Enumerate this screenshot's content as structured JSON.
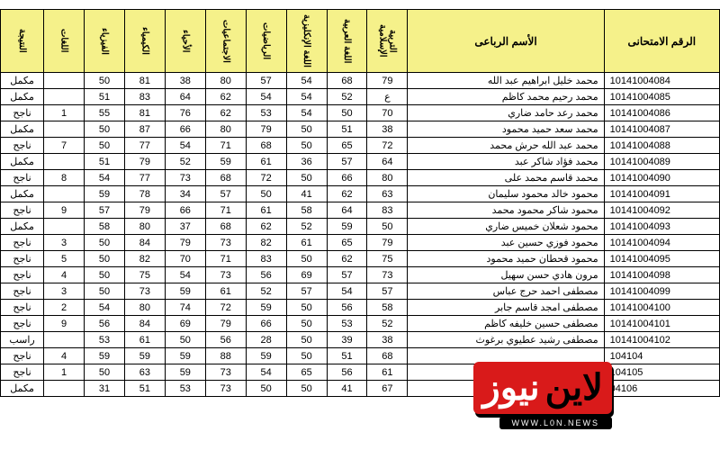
{
  "headers": {
    "examno": "الرقم الامتحانى",
    "name": "الأسم الرباعى",
    "subjects": [
      "التربية الإسلامية",
      "اللغة العربية",
      "اللغة الإنكليزية",
      "الرياضيات",
      "الاجتماعيات",
      "الأحياء",
      "الكيمياء",
      "الفيزياء",
      "اللغات",
      "النتيجة"
    ]
  },
  "rows": [
    {
      "id": "10141004084",
      "name": "محمد خليل ابراهيم عبد الله",
      "v": [
        "79",
        "68",
        "54",
        "57",
        "80",
        "38",
        "81",
        "50",
        "",
        "مكمل"
      ]
    },
    {
      "id": "10141004085",
      "name": "محمد رحيم محمد كاظم",
      "v": [
        "ع",
        "52",
        "54",
        "54",
        "62",
        "64",
        "83",
        "51",
        "",
        "مكمل"
      ]
    },
    {
      "id": "10141004086",
      "name": "محمد رعد حامد ضاري",
      "v": [
        "70",
        "50",
        "54",
        "53",
        "62",
        "76",
        "81",
        "55",
        "1",
        "ناجح"
      ]
    },
    {
      "id": "10141004087",
      "name": "محمد سعد حميد محمود",
      "v": [
        "38",
        "51",
        "50",
        "79",
        "80",
        "66",
        "87",
        "50",
        "",
        "مكمل"
      ]
    },
    {
      "id": "10141004088",
      "name": "محمد عبد الله حرش محمد",
      "v": [
        "72",
        "65",
        "50",
        "68",
        "71",
        "54",
        "77",
        "50",
        "7",
        "ناجح"
      ]
    },
    {
      "id": "10141004089",
      "name": "محمد فؤاد شاكر عبد",
      "v": [
        "64",
        "57",
        "36",
        "61",
        "59",
        "52",
        "79",
        "51",
        "",
        "مكمل"
      ]
    },
    {
      "id": "10141004090",
      "name": "محمد قاسم محمد على",
      "v": [
        "80",
        "66",
        "50",
        "72",
        "68",
        "73",
        "77",
        "54",
        "8",
        "ناجح"
      ]
    },
    {
      "id": "10141004091",
      "name": "محمود خالد محمود سليمان",
      "v": [
        "63",
        "62",
        "41",
        "50",
        "57",
        "34",
        "78",
        "59",
        "",
        "مكمل"
      ]
    },
    {
      "id": "10141004092",
      "name": "محمود شاكر محمود محمد",
      "v": [
        "83",
        "64",
        "58",
        "61",
        "71",
        "66",
        "79",
        "57",
        "9",
        "ناجح"
      ]
    },
    {
      "id": "10141004093",
      "name": "محمود شعلان خميس ضاري",
      "v": [
        "50",
        "59",
        "52",
        "62",
        "68",
        "37",
        "80",
        "58",
        "",
        "مكمل"
      ]
    },
    {
      "id": "10141004094",
      "name": "محمود فوزي حسين عبد",
      "v": [
        "79",
        "65",
        "61",
        "82",
        "73",
        "79",
        "84",
        "50",
        "3",
        "ناجح"
      ]
    },
    {
      "id": "10141004095",
      "name": "محمود قحطان حميد محمود",
      "v": [
        "75",
        "62",
        "50",
        "83",
        "71",
        "70",
        "82",
        "50",
        "5",
        "ناجح"
      ]
    },
    {
      "id": "10141004098",
      "name": "مرون هادي حسن سهيل",
      "v": [
        "73",
        "57",
        "69",
        "56",
        "73",
        "54",
        "75",
        "50",
        "4",
        "ناجح"
      ]
    },
    {
      "id": "10141004099",
      "name": "مصطفى احمد حرج عباس",
      "v": [
        "57",
        "54",
        "57",
        "52",
        "61",
        "59",
        "73",
        "50",
        "3",
        "ناجح"
      ]
    },
    {
      "id": "10141004100",
      "name": "مصطفى امجد قاسم جابر",
      "v": [
        "58",
        "56",
        "50",
        "59",
        "72",
        "74",
        "80",
        "54",
        "2",
        "ناجح"
      ]
    },
    {
      "id": "10141004101",
      "name": "مصطفى حسين خليفه كاظم",
      "v": [
        "52",
        "53",
        "50",
        "66",
        "79",
        "69",
        "84",
        "56",
        "9",
        "ناجح"
      ]
    },
    {
      "id": "10141004102",
      "name": "مصطفى رشيد عطيوي برغوث",
      "v": [
        "38",
        "39",
        "50",
        "28",
        "56",
        "50",
        "61",
        "53",
        "",
        "راسب"
      ]
    },
    {
      "id": "104104",
      "name": "",
      "v": [
        "68",
        "51",
        "50",
        "59",
        "88",
        "59",
        "59",
        "59",
        "4",
        "ناجح"
      ]
    },
    {
      "id": "104105",
      "name": "",
      "v": [
        "61",
        "56",
        "65",
        "54",
        "73",
        "59",
        "63",
        "50",
        "1",
        "ناجح"
      ]
    },
    {
      "id": "04106",
      "name": "",
      "v": [
        "67",
        "41",
        "50",
        "50",
        "73",
        "53",
        "51",
        "31",
        "",
        "مكمل"
      ]
    }
  ],
  "logo": {
    "black": "لاين",
    "white": "نيوز",
    "sub": "WWW.L0N.NEWS"
  },
  "colors": {
    "header_bg": "#f5f18a",
    "border": "#000000",
    "logo_red": "#d91a1a"
  }
}
